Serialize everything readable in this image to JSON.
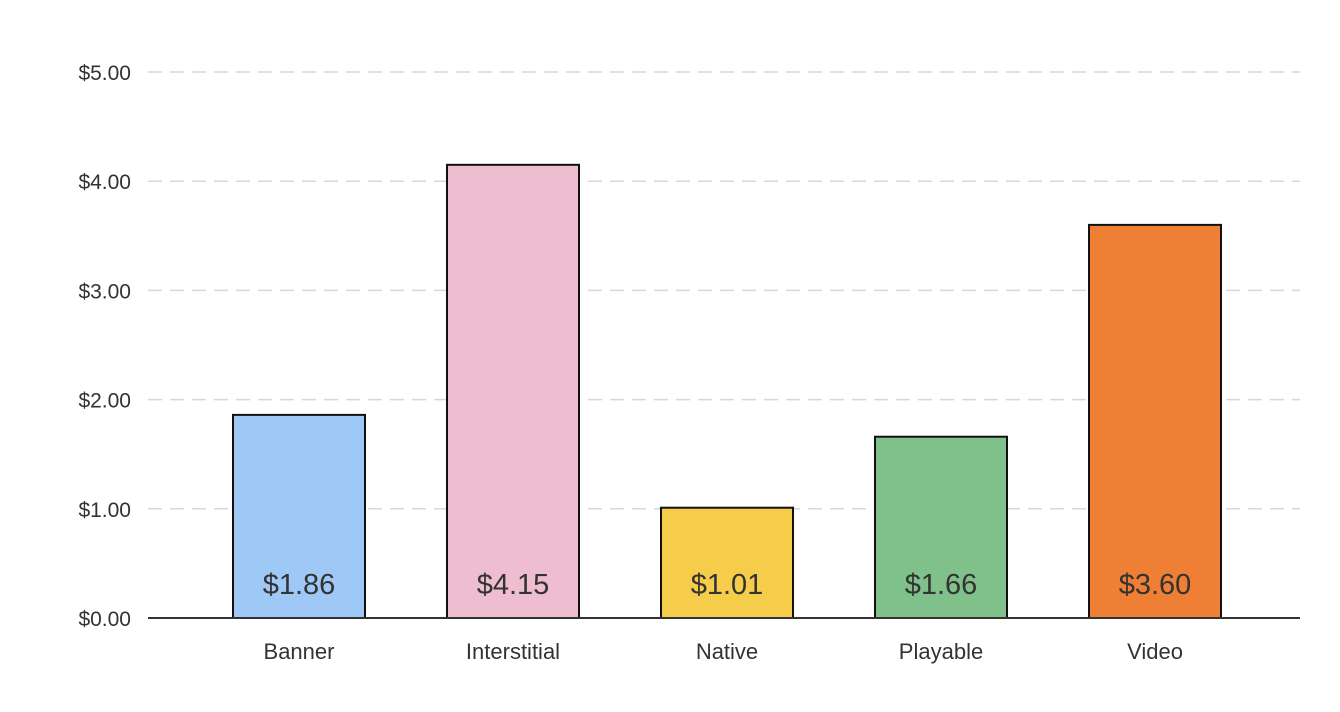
{
  "chart_data": {
    "type": "bar",
    "title": "",
    "xlabel": "",
    "ylabel": "",
    "categories": [
      "Banner",
      "Interstitial",
      "Native",
      "Playable",
      "Video"
    ],
    "values": [
      1.86,
      4.15,
      1.01,
      1.66,
      3.6
    ],
    "value_labels": [
      "$1.86",
      "$4.15",
      "$1.01",
      "$1.66",
      "$3.60"
    ],
    "colors": [
      "#9ec9f7",
      "#efbdd0",
      "#f5cd4a",
      "#80c08a",
      "#ef7f34"
    ],
    "ylim": [
      0,
      5
    ],
    "yticks": [
      0,
      1,
      2,
      3,
      4,
      5
    ],
    "ytick_labels": [
      "$0.00",
      "$1.00",
      "$2.00",
      "$3.00",
      "$4.00",
      "$5.00"
    ],
    "grid": true,
    "legend": "none"
  }
}
